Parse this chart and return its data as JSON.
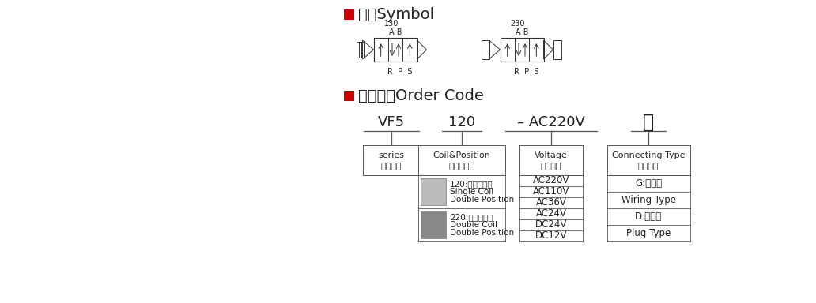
{
  "bg_color": "#ffffff",
  "title_symbol": "符号Symbol",
  "title_order": "订货型号Order Code",
  "red_square_color": "#cc0000",
  "symbol_label_130": "130",
  "symbol_label_230": "230",
  "symbol_ab1": "A B",
  "symbol_rps1": "R  P  S",
  "symbol_ab2": "A B",
  "symbol_rps2": "R  P  S",
  "order_col1_top": "VF5",
  "order_col2_top": "120",
  "order_col3_top": "– AC220V",
  "order_col4_top": "线",
  "order_col1_label1": "系列代号",
  "order_col1_label2": "series",
  "order_col2_label1": "线圈及位数",
  "order_col2_label2": "Coil&Position",
  "order_col2_row1_cn": "120:单头双位置",
  "order_col2_row1_en1": "Single Coil",
  "order_col2_row1_en2": "Double Position",
  "order_col2_row2_cn": "220:双头双位置",
  "order_col2_row2_en1": "Double Coil",
  "order_col2_row2_en2": "Double Position",
  "order_col3_label1": "标准电压",
  "order_col3_label2": "Voltage",
  "order_col3_rows": [
    "AC220V",
    "AC110V",
    "AC36V",
    "AC24V",
    "DC24V",
    "DC12V"
  ],
  "order_col4_label1": "接电形式",
  "order_col4_label2": "Connecting Type",
  "order_col4_row1_cn": "G:出线式",
  "order_col4_row1_en": "Wiring Type",
  "order_col4_row2_cn": "D:端子式",
  "order_col4_row2_en": "Plug Type",
  "text_color": "#222222",
  "line_color": "#555555"
}
